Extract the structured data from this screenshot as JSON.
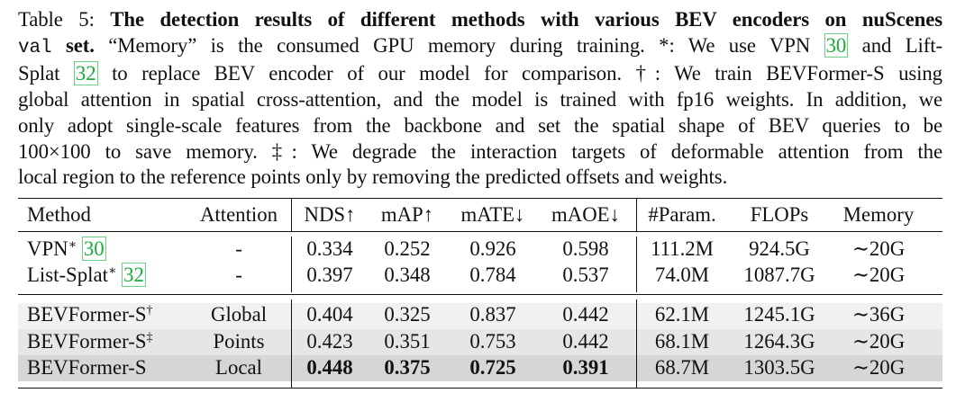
{
  "caption": {
    "label": "Table 5:",
    "title_bold_1": "The detection results of different methods with various BEV encoders on nuScenes",
    "title_mono": "val",
    "title_bold_2": "set.",
    "sentence_memory": "“Memory” is the consumed GPU memory during training.",
    "sym_star": "*:",
    "star_a": "We use VPN",
    "star_cite_1": "30",
    "star_b": "and Lift-",
    "star_c": "Splat",
    "star_cite_2": "32",
    "star_d": "to replace BEV encoder of our model for comparison.",
    "sym_dagger": "†:",
    "dagger_a": "We train BEVFormer-S using",
    "line4": "global attention in spatial cross-attention, and the model is trained with fp16 weights. In addition, we",
    "line5": "only adopt single-scale features from the backbone and set the spatial shape of BEV queries to be",
    "line6_a": "100",
    "line6_times": "×",
    "line6_b": "100 to save memory.",
    "sym_ddagger": "‡:",
    "line6_c": "We degrade the interaction targets of deformable attention from the",
    "line7": "local region to the reference points only by removing the predicted offsets and weights."
  },
  "table": {
    "headers": [
      "Method",
      "Attention",
      "NDS↑",
      "mAP↑",
      "mATE↓",
      "mAOE↓",
      "#Param.",
      "FLOPs",
      "Memory"
    ],
    "rows": [
      {
        "method": "VPN",
        "sup": "∗",
        "cite": "30",
        "attention": "-",
        "nds": "0.334",
        "map": "0.252",
        "mate": "0.926",
        "maoe": "0.598",
        "param": "111.2M",
        "flops": "924.5G",
        "memory": "∼20G"
      },
      {
        "method": "List-Splat",
        "sup": "∗",
        "cite": "32",
        "attention": "-",
        "nds": "0.397",
        "map": "0.348",
        "mate": "0.784",
        "maoe": "0.537",
        "param": "74.0M",
        "flops": "1087.7G",
        "memory": "∼20G"
      },
      {
        "method": "BEVFormer-S",
        "sup": "†",
        "cite": "",
        "attention": "Global",
        "nds": "0.404",
        "map": "0.325",
        "mate": "0.837",
        "maoe": "0.442",
        "param": "62.1M",
        "flops": "1245.1G",
        "memory": "∼36G"
      },
      {
        "method": "BEVFormer-S",
        "sup": "‡",
        "cite": "",
        "attention": "Points",
        "nds": "0.423",
        "map": "0.351",
        "mate": "0.753",
        "maoe": "0.442",
        "param": "68.1M",
        "flops": "1264.3G",
        "memory": "∼20G"
      },
      {
        "method": "BEVFormer-S",
        "sup": "",
        "cite": "",
        "attention": "Local",
        "nds": "0.448",
        "map": "0.375",
        "mate": "0.725",
        "maoe": "0.391",
        "param": "68.7M",
        "flops": "1303.5G",
        "memory": "∼20G"
      }
    ]
  }
}
